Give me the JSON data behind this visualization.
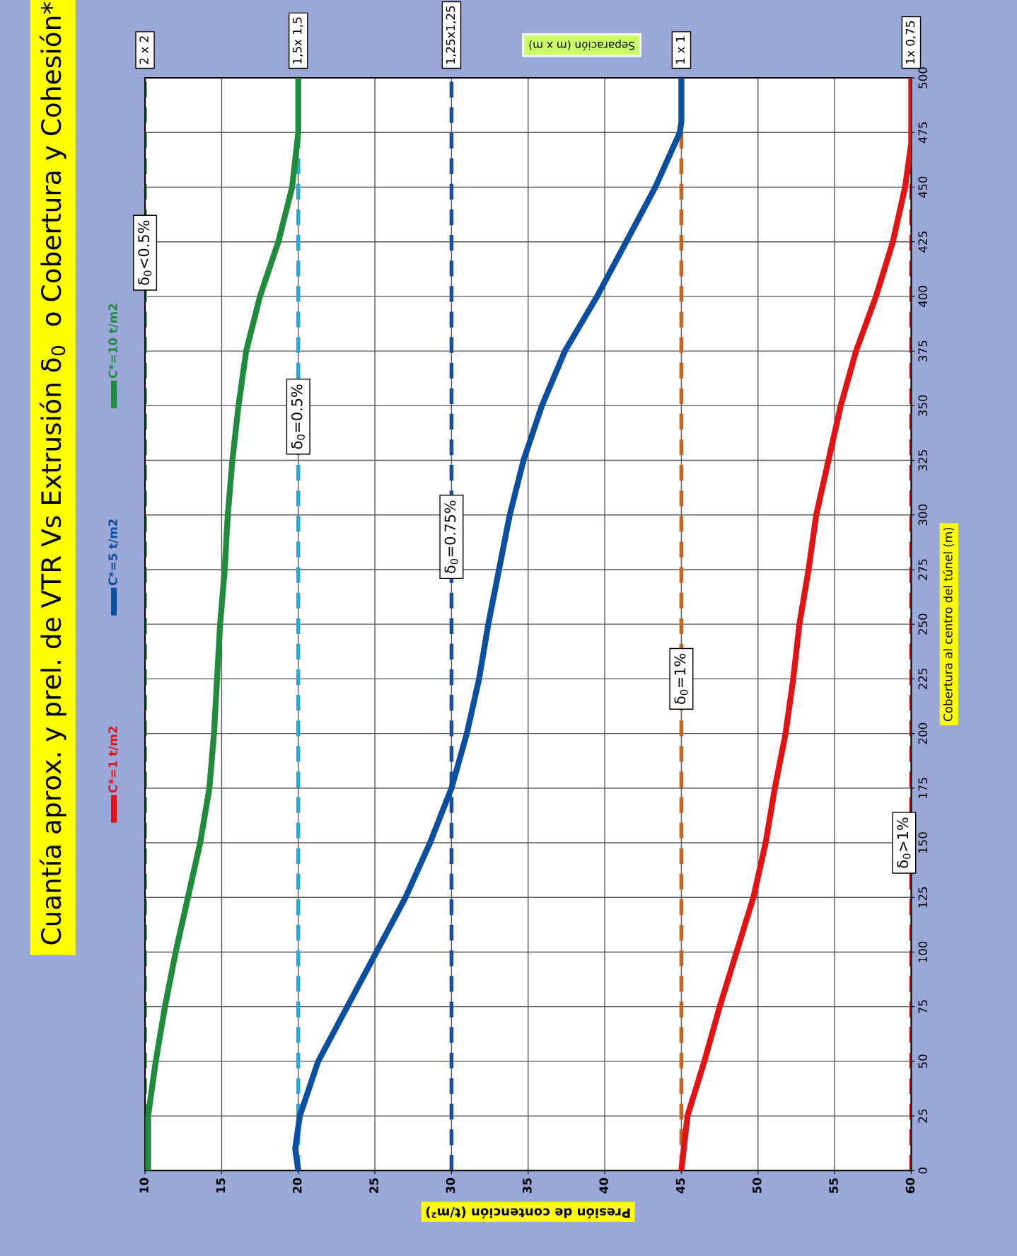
{
  "chart_data": {
    "type": "line",
    "title": "Cuantía aprox. y prel. de VTR Vs Extrusión δ$_{0}$  o Cobertura y Cohesión*",
    "xlabel": "Presión de contención (t/m²)",
    "ylabel": "Cobertura al centro del túnel (m)",
    "xlim": [
      10,
      60
    ],
    "xticks": [
      10,
      15,
      20,
      25,
      30,
      35,
      40,
      45,
      50,
      55,
      60
    ],
    "ylim": [
      0,
      500
    ],
    "yticks": [
      0,
      25,
      50,
      75,
      100,
      125,
      150,
      175,
      200,
      225,
      250,
      275,
      300,
      325,
      350,
      375,
      400,
      425,
      450,
      475,
      500
    ],
    "grid": true,
    "legend": "left",
    "line_style": "solid",
    "series": [
      {
        "name": "C*=1 t/m2",
        "color": "#e01414",
        "x": [
          45.0,
          45.4,
          46.5,
          47.5,
          48.6,
          49.7,
          50.5,
          51.1,
          51.8,
          52.3,
          52.7,
          53.3,
          53.8,
          54.6,
          55.4,
          56.4,
          57.7,
          58.8,
          59.6,
          60.0,
          60.0
        ],
        "values": [
          0,
          25,
          50,
          75,
          100,
          125,
          150,
          175,
          200,
          225,
          250,
          275,
          300,
          325,
          350,
          375,
          400,
          425,
          450,
          470,
          500
        ]
      },
      {
        "name": "C*=5 t/m2",
        "color": "#0a4fa0",
        "x": [
          20.0,
          19.8,
          20.1,
          21.3,
          23.2,
          25.1,
          27.0,
          28.6,
          30.0,
          31.0,
          31.8,
          32.4,
          33.1,
          33.8,
          34.7,
          35.9,
          37.4,
          39.5,
          41.4,
          43.3,
          44.9,
          45.0,
          45.0
        ],
        "values": [
          0,
          10,
          25,
          50,
          75,
          100,
          125,
          150,
          175,
          200,
          225,
          250,
          275,
          300,
          325,
          350,
          375,
          400,
          425,
          450,
          475,
          480,
          500
        ]
      },
      {
        "name": "C*=10 t/m2",
        "color": "#1e8c3a",
        "x": [
          10.2,
          10.2,
          10.7,
          11.3,
          12.0,
          12.8,
          13.6,
          14.2,
          14.5,
          14.7,
          14.9,
          15.2,
          15.4,
          15.7,
          16.1,
          16.6,
          17.5,
          18.7,
          19.6,
          20.0,
          20.0
        ],
        "values": [
          0,
          25,
          50,
          75,
          100,
          125,
          150,
          175,
          200,
          225,
          250,
          275,
          300,
          325,
          350,
          375,
          400,
          425,
          450,
          475,
          500
        ]
      }
    ],
    "ref_lines": [
      {
        "axis": "x",
        "value": 10,
        "label": "2 x 2",
        "color": "#2ca24a",
        "line_style": "dashed"
      },
      {
        "axis": "x",
        "value": 20,
        "label": "1,5x 1,5",
        "color": "#2aa8d8",
        "line_style": "dashed"
      },
      {
        "axis": "x",
        "value": 30,
        "label": "1,25x1,25",
        "color": "#1f4e9a",
        "line_style": "dashed"
      },
      {
        "axis": "x",
        "value": 45,
        "label": "1 x 1",
        "color": "#c8641e",
        "line_style": "dashed"
      },
      {
        "axis": "x",
        "value": 60,
        "label": "1x 0,75",
        "color": "#e02020",
        "line_style": "dashed"
      }
    ],
    "annotations": [
      "Separación (m x m)",
      {
        "text": "δ$_{0}$<0.5%",
        "x": 10,
        "y": 420
      },
      {
        "text": "δ$_{0}$=0.5%",
        "x": 20,
        "y": 345
      },
      {
        "text": "δ$_{0}$=0.75%",
        "x": 30,
        "y": 290
      },
      {
        "text": "δ$_{0}$=1%",
        "x": 45,
        "y": 225
      },
      {
        "text": "δ$_{0}$>1%",
        "x": 60,
        "y": 150
      }
    ]
  }
}
